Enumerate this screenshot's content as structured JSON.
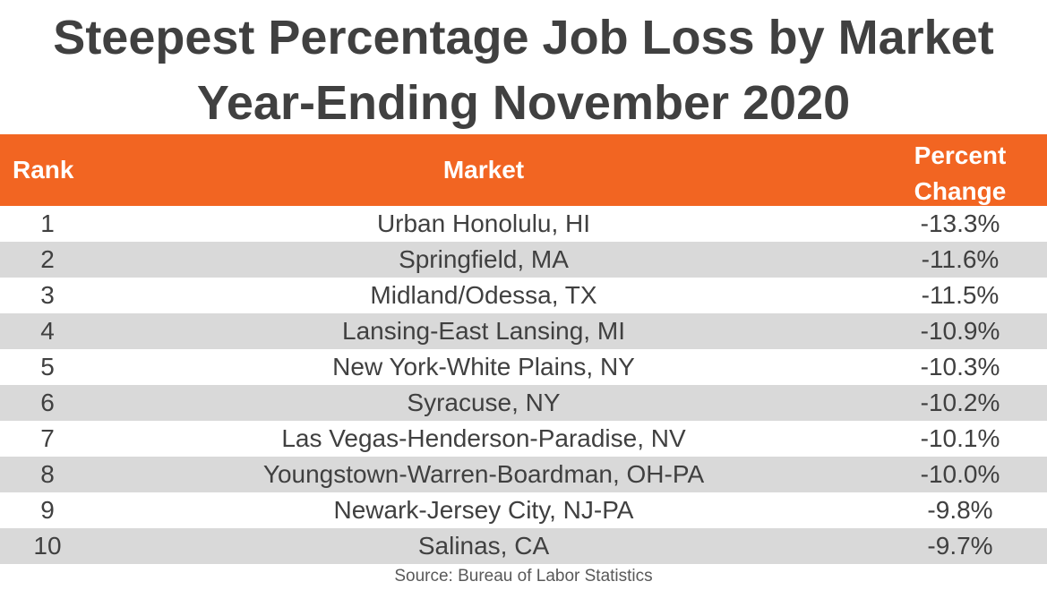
{
  "title_line1": "Steepest Percentage Job Loss by Market",
  "title_line2": "Year-Ending November 2020",
  "header": {
    "rank": "Rank",
    "market": "Market",
    "pct_line1": "Percent",
    "pct_line2": "Change"
  },
  "colors": {
    "header_bg": "#f26522",
    "alt_row_bg": "#d9d9d9",
    "text": "#404040"
  },
  "source": "Source: Bureau of Labor Statistics",
  "chart_data": {
    "type": "table",
    "title": "Steepest Percentage Job Loss by Market Year-Ending November 2020",
    "columns": [
      "Rank",
      "Market",
      "Percent Change"
    ],
    "rows": [
      {
        "rank": "1",
        "market": "Urban Honolulu, HI",
        "pct": "-13.3%"
      },
      {
        "rank": "2",
        "market": "Springfield, MA",
        "pct": "-11.6%"
      },
      {
        "rank": "3",
        "market": "Midland/Odessa, TX",
        "pct": "-11.5%"
      },
      {
        "rank": "4",
        "market": "Lansing-East Lansing, MI",
        "pct": "-10.9%"
      },
      {
        "rank": "5",
        "market": "New York-White Plains, NY",
        "pct": "-10.3%"
      },
      {
        "rank": "6",
        "market": "Syracuse, NY",
        "pct": "-10.2%"
      },
      {
        "rank": "7",
        "market": "Las Vegas-Henderson-Paradise, NV",
        "pct": "-10.1%"
      },
      {
        "rank": "8",
        "market": "Youngstown-Warren-Boardman, OH-PA",
        "pct": "-10.0%"
      },
      {
        "rank": "9",
        "market": "Newark-Jersey City, NJ-PA",
        "pct": "-9.8%"
      },
      {
        "rank": "10",
        "market": "Salinas, CA",
        "pct": "-9.7%"
      }
    ]
  }
}
